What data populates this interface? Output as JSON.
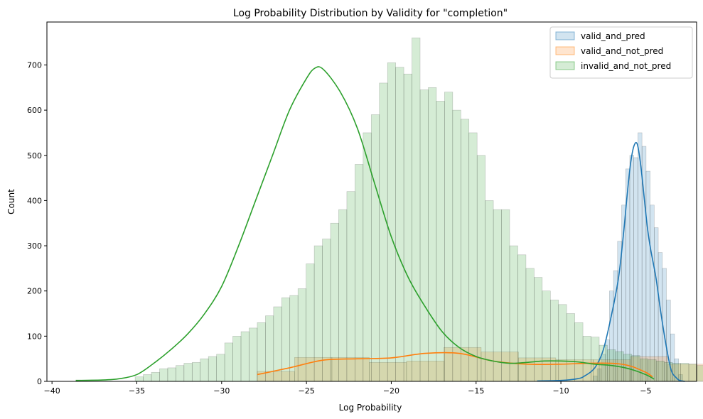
{
  "chart_data": {
    "type": "histogram",
    "title": "Log Probability Distribution by Validity for \"completion\"",
    "xlabel": "Log Probability",
    "ylabel": "Count",
    "xlim": [
      -40.3,
      -2
    ],
    "ylim": [
      0,
      795
    ],
    "xticks": [
      -40,
      -35,
      -30,
      -25,
      -20,
      -15,
      -10,
      -5
    ],
    "yticks": [
      0,
      100,
      200,
      300,
      400,
      500,
      600,
      700
    ],
    "legend_position": "top-right",
    "grid": false,
    "series": [
      {
        "name": "valid_and_pred",
        "color": "#1f77b4",
        "bin_start": -8.1,
        "bin_width": 0.24,
        "counts": [
          12,
          28,
          60,
          92,
          200,
          245,
          310,
          390,
          470,
          500,
          495,
          550,
          520,
          465,
          390,
          340,
          285,
          250,
          180,
          105,
          50,
          15
        ],
        "kde_x": [
          -11.4,
          -10,
          -9.0,
          -8.6,
          -8.0,
          -7.5,
          -7.0,
          -6.6,
          -6.3,
          -6.1,
          -5.9,
          -5.7,
          -5.5,
          -5.3,
          -5.1,
          -4.9,
          -4.7,
          -4.4,
          -4.1,
          -3.8,
          -3.5,
          -3.2,
          -3.0,
          -2.7
        ],
        "kde_y": [
          1,
          2,
          6,
          12,
          30,
          70,
          150,
          230,
          330,
          410,
          480,
          520,
          525,
          480,
          410,
          340,
          290,
          230,
          150,
          80,
          25,
          8,
          2,
          0
        ]
      },
      {
        "name": "valid_and_not_pred",
        "color": "#ff7f0e",
        "bin_start": -27.9,
        "bin_width": 2.2,
        "counts": [
          22,
          53,
          53,
          42,
          45,
          75,
          65,
          52,
          48,
          48,
          55,
          38,
          50,
          45,
          55,
          35,
          33,
          32,
          32,
          31
        ],
        "kde_x": [
          -27.9,
          -26,
          -24,
          -22,
          -20,
          -18,
          -16,
          -14,
          -12,
          -10,
          -8.5,
          -7,
          -6,
          -5,
          -4.6
        ],
        "kde_y": [
          15,
          30,
          47,
          50,
          52,
          62,
          62,
          45,
          38,
          38,
          40,
          40,
          35,
          20,
          10
        ]
      },
      {
        "name": "invalid_and_not_pred",
        "color": "#2ca02c",
        "bin_start": -35.1,
        "bin_width": 0.48,
        "counts": [
          10,
          15,
          20,
          28,
          30,
          35,
          40,
          42,
          50,
          55,
          60,
          85,
          100,
          110,
          118,
          130,
          145,
          165,
          185,
          190,
          205,
          260,
          300,
          315,
          350,
          380,
          420,
          480,
          550,
          590,
          660,
          705,
          695,
          680,
          760,
          645,
          650,
          620,
          640,
          600,
          580,
          550,
          500,
          400,
          380,
          380,
          300,
          280,
          250,
          230,
          200,
          180,
          170,
          150,
          130,
          100,
          98,
          80,
          70,
          66,
          60,
          57,
          50,
          48,
          45,
          42,
          40,
          40,
          38,
          35,
          35,
          38,
          40,
          45,
          47,
          48,
          50,
          52,
          48,
          50,
          55,
          60,
          55,
          55,
          50,
          50,
          45,
          40,
          38,
          35,
          32,
          30,
          28,
          25,
          20,
          15,
          10,
          5
        ],
        "kde_x": [
          -38.6,
          -37,
          -36,
          -35,
          -34,
          -33,
          -32,
          -31,
          -30,
          -29,
          -28,
          -27,
          -26,
          -25,
          -24.5,
          -24,
          -23,
          -22,
          -21,
          -20,
          -19,
          -18,
          -17,
          -16,
          -15,
          -14,
          -13,
          -12,
          -11,
          -10,
          -9,
          -8,
          -7,
          -6,
          -5,
          -4.5
        ],
        "kde_y": [
          2,
          3,
          6,
          15,
          40,
          70,
          105,
          150,
          210,
          300,
          400,
          500,
          600,
          670,
          693,
          690,
          640,
          560,
          440,
          320,
          230,
          165,
          110,
          75,
          55,
          45,
          40,
          42,
          45,
          45,
          43,
          38,
          35,
          28,
          15,
          5
        ]
      }
    ]
  }
}
